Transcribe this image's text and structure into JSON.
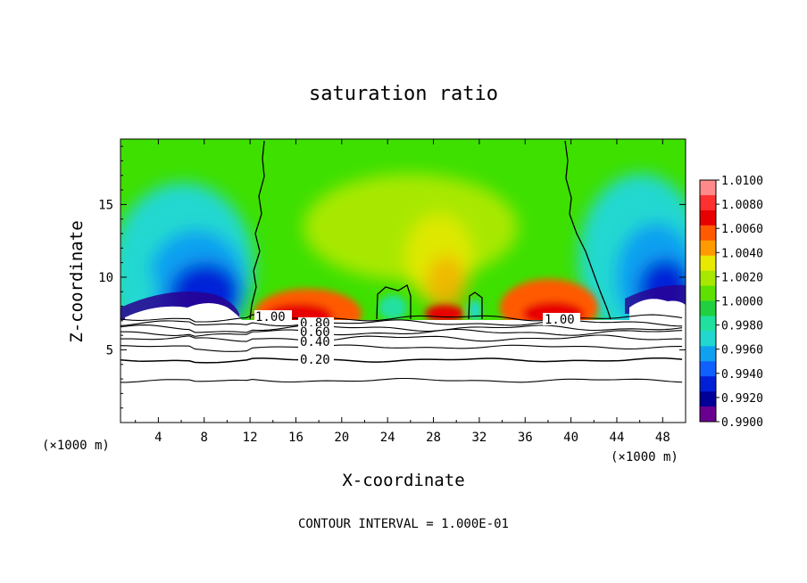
{
  "chart_data": {
    "type": "heatmap",
    "title": "saturation ratio",
    "xlabel": "X-coordinate",
    "ylabel": "Z-coordinate",
    "x_unit": "(×1000 m)",
    "x_unit_right": "(×1000 m)",
    "xlim": [
      0.7,
      50
    ],
    "ylim": [
      0,
      19.5
    ],
    "x_ticks": [
      4,
      8,
      12,
      16,
      20,
      24,
      28,
      32,
      36,
      40,
      44,
      48
    ],
    "y_ticks": [
      5,
      10,
      15
    ],
    "footer": "CONTOUR INTERVAL = 1.000E-01",
    "colorbar": {
      "ticks": [
        "1.0100",
        "1.0080",
        "1.0060",
        "1.0040",
        "1.0020",
        "1.0000",
        "0.9980",
        "0.9960",
        "0.9940",
        "0.9920",
        "0.9900"
      ],
      "colors": [
        "#ff8a8a",
        "#ff3030",
        "#e80000",
        "#ff5a00",
        "#ff9a00",
        "#e8e800",
        "#a8e800",
        "#5ee000",
        "#20d040",
        "#20e0a0",
        "#20d8d0",
        "#10a0f0",
        "#1060ff",
        "#0020d8",
        "#000098",
        "#6a0090"
      ]
    },
    "contour_labels": [
      "1.00",
      "0.80",
      "0.60",
      "0.40",
      "0.20",
      "1.00"
    ],
    "low_contour_levels_z": [
      7.2,
      6.85,
      6.5,
      6.2,
      5.8,
      5.2,
      4.3,
      2.9
    ]
  }
}
